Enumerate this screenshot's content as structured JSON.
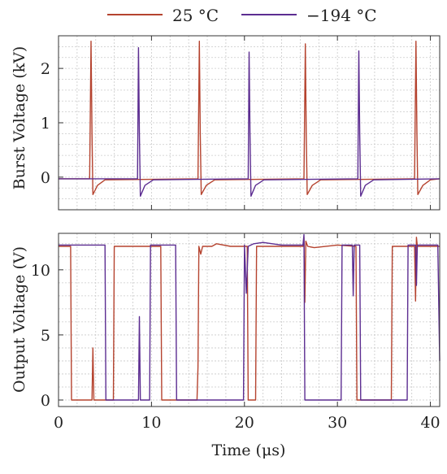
{
  "chart_data": [
    {
      "type": "line",
      "ylabel": "Burst Voltage (kV)",
      "xlim": [
        0,
        41
      ],
      "ylim": [
        -0.6,
        2.6
      ],
      "yticks": [
        0,
        1,
        2
      ],
      "xticks": [
        0,
        10,
        20,
        30,
        40
      ],
      "grid": true,
      "legend_position": "top",
      "series": [
        {
          "name": "25 °C",
          "color": "#b5432f",
          "points": [
            [
              0,
              -0.03
            ],
            [
              3.35,
              -0.03
            ],
            [
              3.5,
              2.5
            ],
            [
              3.6,
              0.8
            ],
            [
              3.7,
              -0.32
            ],
            [
              4.2,
              -0.15
            ],
            [
              5.0,
              -0.05
            ],
            [
              15.0,
              -0.03
            ],
            [
              15.15,
              2.5
            ],
            [
              15.25,
              0.8
            ],
            [
              15.35,
              -0.32
            ],
            [
              15.9,
              -0.15
            ],
            [
              16.8,
              -0.05
            ],
            [
              26.4,
              -0.03
            ],
            [
              26.55,
              2.45
            ],
            [
              26.65,
              0.8
            ],
            [
              26.75,
              -0.32
            ],
            [
              27.3,
              -0.15
            ],
            [
              28.2,
              -0.05
            ],
            [
              38.3,
              -0.03
            ],
            [
              38.45,
              2.5
            ],
            [
              38.55,
              0.8
            ],
            [
              38.65,
              -0.32
            ],
            [
              39.2,
              -0.15
            ],
            [
              40.0,
              -0.05
            ],
            [
              41,
              -0.03
            ]
          ]
        },
        {
          "name": "−194 °C",
          "color": "#5c2d91",
          "points": [
            [
              0,
              -0.03
            ],
            [
              8.5,
              -0.03
            ],
            [
              8.6,
              2.38
            ],
            [
              8.7,
              0.8
            ],
            [
              8.8,
              -0.35
            ],
            [
              9.3,
              -0.15
            ],
            [
              10.2,
              -0.05
            ],
            [
              20.4,
              -0.03
            ],
            [
              20.5,
              2.3
            ],
            [
              20.6,
              0.8
            ],
            [
              20.7,
              -0.35
            ],
            [
              21.2,
              -0.15
            ],
            [
              22.1,
              -0.05
            ],
            [
              32.2,
              -0.03
            ],
            [
              32.3,
              2.32
            ],
            [
              32.4,
              0.8
            ],
            [
              32.5,
              -0.35
            ],
            [
              33.0,
              -0.15
            ],
            [
              33.9,
              -0.05
            ],
            [
              41,
              -0.03
            ]
          ]
        }
      ]
    },
    {
      "type": "line",
      "xlabel": "Time (μs)",
      "ylabel": "Output Voltage (V)",
      "xlim": [
        0,
        41
      ],
      "ylim": [
        -0.5,
        12.8
      ],
      "yticks": [
        0,
        5,
        10
      ],
      "xticks": [
        0,
        10,
        20,
        30,
        40
      ],
      "grid": true,
      "series": [
        {
          "name": "25 °C",
          "color": "#b5432f",
          "points": [
            [
              0,
              11.8
            ],
            [
              1.3,
              11.8
            ],
            [
              1.4,
              0
            ],
            [
              3.6,
              0
            ],
            [
              3.7,
              4.0
            ],
            [
              3.8,
              0
            ],
            [
              5.9,
              0
            ],
            [
              6.0,
              11.8
            ],
            [
              11.0,
              11.8
            ],
            [
              11.1,
              0
            ],
            [
              14.9,
              0
            ],
            [
              15.0,
              2.5
            ],
            [
              15.1,
              11.8
            ],
            [
              15.3,
              11.2
            ],
            [
              15.5,
              11.8
            ],
            [
              16.5,
              11.8
            ],
            [
              17.0,
              12.0
            ],
            [
              18.5,
              11.8
            ],
            [
              20.3,
              11.8
            ],
            [
              20.4,
              0
            ],
            [
              21.2,
              0
            ],
            [
              21.3,
              11.8
            ],
            [
              26.3,
              11.8
            ],
            [
              26.4,
              12.5
            ],
            [
              26.5,
              7.5
            ],
            [
              26.6,
              12.2
            ],
            [
              26.8,
              11.8
            ],
            [
              27.5,
              11.7
            ],
            [
              30.0,
              11.9
            ],
            [
              32.0,
              11.8
            ],
            [
              32.1,
              0
            ],
            [
              35.8,
              0
            ],
            [
              35.9,
              11.8
            ],
            [
              38.3,
              11.8
            ],
            [
              38.4,
              7.6
            ],
            [
              38.5,
              12.5
            ],
            [
              38.6,
              11.8
            ],
            [
              41,
              11.8
            ]
          ]
        },
        {
          "name": "−194 °C",
          "color": "#5c2d91",
          "points": [
            [
              0,
              11.9
            ],
            [
              5.0,
              11.9
            ],
            [
              5.1,
              0
            ],
            [
              8.6,
              0
            ],
            [
              8.7,
              6.4
            ],
            [
              8.8,
              0
            ],
            [
              9.8,
              0
            ],
            [
              9.9,
              11.9
            ],
            [
              12.6,
              11.9
            ],
            [
              12.7,
              0
            ],
            [
              19.8,
              0
            ],
            [
              19.9,
              0
            ],
            [
              20.0,
              11.9
            ],
            [
              20.2,
              8.2
            ],
            [
              20.4,
              11.8
            ],
            [
              21.0,
              12.0
            ],
            [
              22.0,
              12.1
            ],
            [
              24.0,
              11.9
            ],
            [
              26.3,
              11.9
            ],
            [
              26.4,
              12.7
            ],
            [
              26.5,
              0
            ],
            [
              30.4,
              0
            ],
            [
              30.5,
              11.9
            ],
            [
              31.6,
              11.9
            ],
            [
              31.7,
              8.0
            ],
            [
              31.8,
              11.9
            ],
            [
              32.4,
              11.9
            ],
            [
              32.5,
              0
            ],
            [
              37.5,
              0
            ],
            [
              37.6,
              11.9
            ],
            [
              38.4,
              11.9
            ],
            [
              38.5,
              8.8
            ],
            [
              38.6,
              11.9
            ],
            [
              40.8,
              11.9
            ],
            [
              41.0,
              3.0
            ]
          ]
        }
      ]
    }
  ],
  "legend": {
    "items": [
      {
        "label": "25 °C",
        "color": "#b5432f"
      },
      {
        "label": "−194 °C",
        "color": "#5c2d91"
      }
    ]
  }
}
